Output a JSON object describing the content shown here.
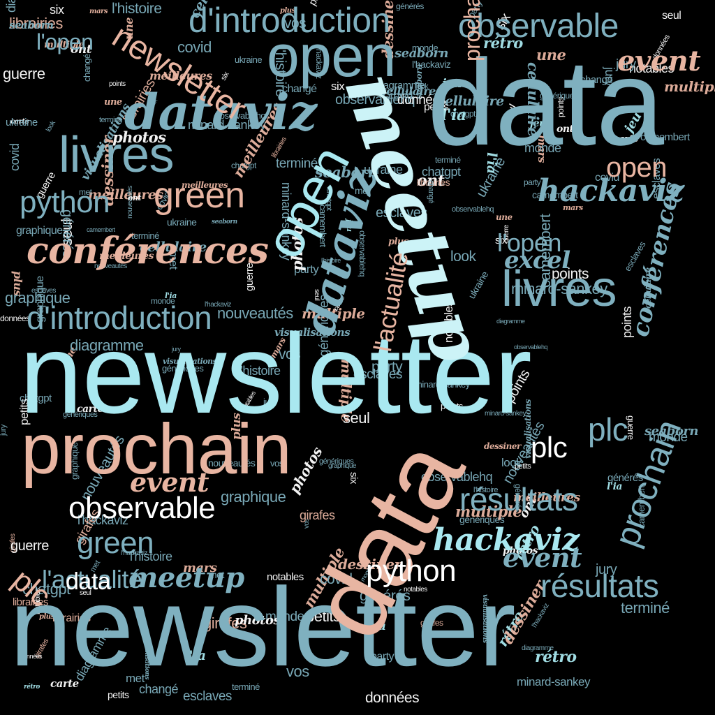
{
  "palette": {
    "background": "#000000",
    "steel": "#7fb0bf",
    "aqua": "#a9e8f0",
    "peach": "#e8b5a2",
    "pale": "#ccf3f7",
    "white": "#ffffff"
  },
  "words": [
    {
      "text": "newsletter",
      "style": "sans",
      "color": "aqua"
    },
    {
      "text": "newsletter",
      "style": "sans",
      "color": "steel"
    },
    {
      "text": "data",
      "style": "sans",
      "color": "steel"
    },
    {
      "text": "data",
      "style": "sans",
      "color": "peach"
    },
    {
      "text": "meetup",
      "style": "bold",
      "color": "pale"
    },
    {
      "text": "prochain",
      "style": "sans",
      "color": "peach"
    },
    {
      "text": "open",
      "style": "sans",
      "color": "steel"
    },
    {
      "text": "open",
      "style": "sans",
      "color": "aqua"
    },
    {
      "text": "dataviz",
      "style": "bold",
      "color": "steel"
    },
    {
      "text": "dataviz",
      "style": "bold",
      "color": "steel"
    },
    {
      "text": "livres",
      "style": "sans",
      "color": "steel"
    },
    {
      "text": "livres",
      "style": "sans",
      "color": "steel"
    },
    {
      "text": "d'introduction",
      "style": "sans",
      "color": "steel"
    },
    {
      "text": "d'introduction",
      "style": "sans",
      "color": "steel"
    },
    {
      "text": "observable",
      "style": "sans",
      "color": "steel"
    },
    {
      "text": "observable",
      "style": "sans",
      "color": "white"
    },
    {
      "text": "newsletter",
      "style": "sans",
      "color": "peach"
    },
    {
      "text": "conférences",
      "style": "bold",
      "color": "peach"
    },
    {
      "text": "python",
      "style": "sans",
      "color": "steel"
    },
    {
      "text": "python",
      "style": "sans",
      "color": "white"
    },
    {
      "text": "green",
      "style": "sans",
      "color": "peach"
    },
    {
      "text": "green",
      "style": "sans",
      "color": "steel"
    },
    {
      "text": "hackaviz",
      "style": "bold",
      "color": "steel"
    },
    {
      "text": "hackaviz",
      "style": "bold",
      "color": "aqua"
    },
    {
      "text": "event",
      "style": "bold",
      "color": "peach"
    },
    {
      "text": "event",
      "style": "bold",
      "color": "peach"
    },
    {
      "text": "event",
      "style": "bold",
      "color": "steel"
    },
    {
      "text": "résultats",
      "style": "sans",
      "color": "steel"
    },
    {
      "text": "résultats",
      "style": "sans",
      "color": "steel"
    },
    {
      "text": "plc",
      "style": "sans",
      "color": "steel"
    },
    {
      "text": "plc",
      "style": "sans",
      "color": "white"
    },
    {
      "text": "plc",
      "style": "sans",
      "color": "peach"
    },
    {
      "text": "prochain",
      "style": "sans",
      "color": "steel"
    },
    {
      "text": "prochain",
      "style": "sans",
      "color": "peach"
    },
    {
      "text": "l'actualité",
      "style": "sans",
      "color": "steel"
    },
    {
      "text": "l'actualité",
      "style": "sans",
      "color": "peach"
    },
    {
      "text": "l'open",
      "style": "sans",
      "color": "steel"
    },
    {
      "text": "l'open",
      "style": "sans",
      "color": "steel"
    },
    {
      "text": "meetup",
      "style": "bold",
      "color": "steel"
    },
    {
      "text": "data",
      "style": "sans",
      "color": "white"
    },
    {
      "text": "excel",
      "style": "bold",
      "color": "steel"
    },
    {
      "text": "open",
      "style": "sans",
      "color": "peach"
    },
    {
      "text": "conférences",
      "style": "bold",
      "color": "steel"
    },
    {
      "text": "diagramme",
      "style": "sans",
      "color": "steel"
    },
    {
      "text": "librairies",
      "style": "sans",
      "color": "peach"
    },
    {
      "text": "visualisations",
      "style": "bold",
      "color": "steel"
    },
    {
      "text": "chatgpt",
      "style": "sans",
      "color": "steel"
    },
    {
      "text": "girafes",
      "style": "sans",
      "color": "peach"
    },
    {
      "text": "camembert",
      "style": "sans",
      "color": "steel"
    },
    {
      "text": "minard-sankey",
      "style": "sans",
      "color": "steel"
    },
    {
      "text": "observablehq",
      "style": "sans",
      "color": "steel"
    },
    {
      "text": "ukraine",
      "style": "sans",
      "color": "steel"
    },
    {
      "text": "seaborn",
      "style": "bold",
      "color": "steel"
    },
    {
      "text": "cellulaire",
      "style": "bold",
      "color": "steel"
    },
    {
      "text": "esclaves",
      "style": "sans",
      "color": "steel"
    },
    {
      "text": "nouveautés",
      "style": "sans",
      "color": "steel"
    },
    {
      "text": "multiple",
      "style": "bold",
      "color": "peach"
    },
    {
      "text": "meilleures",
      "style": "bold",
      "color": "peach"
    },
    {
      "text": "terminé",
      "style": "sans",
      "color": "steel"
    },
    {
      "text": "graphique",
      "style": "sans",
      "color": "steel"
    },
    {
      "text": "génériques",
      "style": "sans",
      "color": "steel"
    },
    {
      "text": "notables",
      "style": "sans",
      "color": "white"
    },
    {
      "text": "petits",
      "style": "sans",
      "color": "white"
    },
    {
      "text": "l'hackaviz",
      "style": "sans",
      "color": "steel"
    },
    {
      "text": "l'histoire",
      "style": "sans",
      "color": "steel"
    },
    {
      "text": "points",
      "style": "sans",
      "color": "white"
    },
    {
      "text": "monde",
      "style": "sans",
      "color": "steel"
    },
    {
      "text": "guerre",
      "style": "sans",
      "color": "white"
    },
    {
      "text": "covid",
      "style": "sans",
      "color": "steel"
    },
    {
      "text": "jury",
      "style": "sans",
      "color": "steel"
    },
    {
      "text": "seul",
      "style": "sans",
      "color": "white"
    },
    {
      "text": "six",
      "style": "sans",
      "color": "white"
    },
    {
      "text": "met",
      "style": "sans",
      "color": "steel"
    },
    {
      "text": "look",
      "style": "sans",
      "color": "steel"
    },
    {
      "text": "party",
      "style": "sans",
      "color": "steel"
    },
    {
      "text": "changé",
      "style": "sans",
      "color": "steel"
    },
    {
      "text": "générés",
      "style": "sans",
      "color": "steel"
    },
    {
      "text": "vos",
      "style": "sans",
      "color": "steel"
    },
    {
      "text": "données",
      "style": "sans",
      "color": "white"
    },
    {
      "text": "carte",
      "style": "bold",
      "color": "white"
    },
    {
      "text": "photos",
      "style": "bold",
      "color": "white"
    },
    {
      "text": "rétro",
      "style": "bold",
      "color": "aqua"
    },
    {
      "text": "l'ia",
      "style": "bold",
      "color": "aqua"
    },
    {
      "text": "jeu",
      "style": "bold",
      "color": "aqua"
    },
    {
      "text": "plus",
      "style": "bold",
      "color": "peach"
    },
    {
      "text": "une",
      "style": "bold",
      "color": "peach"
    },
    {
      "text": "ont",
      "style": "bold",
      "color": "white"
    },
    {
      "text": "dessiner",
      "style": "bold",
      "color": "peach"
    },
    {
      "text": "mars",
      "style": "bold",
      "color": "peach"
    }
  ]
}
